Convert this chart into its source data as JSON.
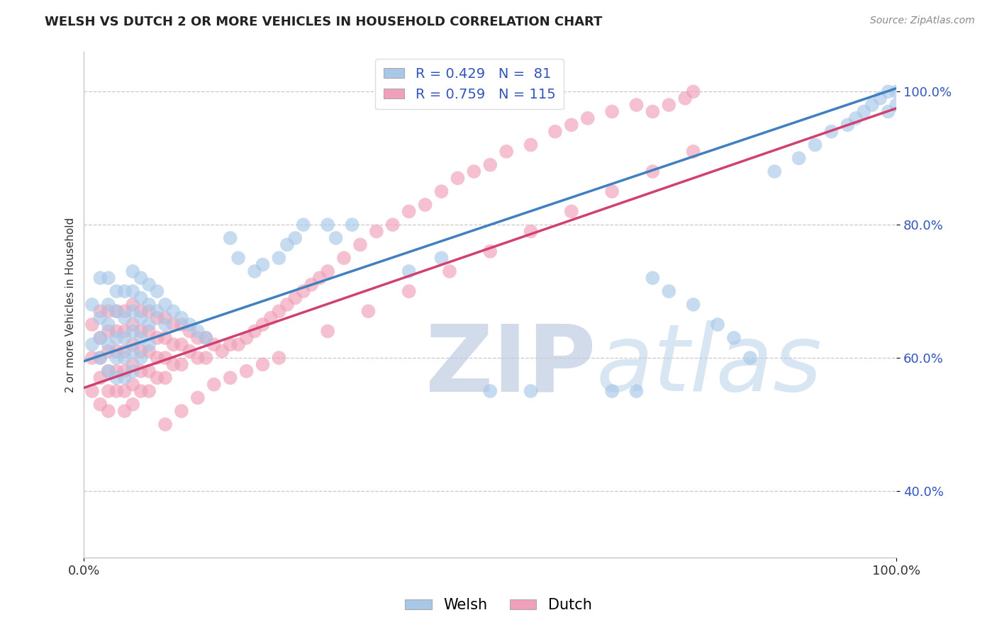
{
  "title": "WELSH VS DUTCH 2 OR MORE VEHICLES IN HOUSEHOLD CORRELATION CHART",
  "source": "Source: ZipAtlas.com",
  "ylabel": "2 or more Vehicles in Household",
  "welsh_R": 0.429,
  "welsh_N": 81,
  "dutch_R": 0.759,
  "dutch_N": 115,
  "welsh_color": "#a8c8e8",
  "dutch_color": "#f0a0b8",
  "welsh_line_color": "#4080c0",
  "dutch_line_color": "#d04070",
  "background_color": "#ffffff",
  "grid_color": "#c8c8c8",
  "xlim": [
    0.0,
    1.0
  ],
  "ylim": [
    0.3,
    1.06
  ],
  "ytick_positions": [
    0.4,
    0.6,
    0.8,
    1.0
  ],
  "ytick_labels": [
    "40.0%",
    "60.0%",
    "80.0%",
    "100.0%"
  ],
  "xtick_positions": [
    0.0,
    1.0
  ],
  "xtick_labels": [
    "0.0%",
    "100.0%"
  ],
  "title_fontsize": 13,
  "axis_fontsize": 11,
  "tick_fontsize": 13,
  "legend_fontsize": 14,
  "welsh_line": [
    0.0,
    0.595,
    1.0,
    1.005
  ],
  "dutch_line": [
    0.0,
    0.555,
    1.0,
    0.975
  ],
  "welsh_x": [
    0.01,
    0.01,
    0.02,
    0.02,
    0.02,
    0.02,
    0.03,
    0.03,
    0.03,
    0.03,
    0.03,
    0.04,
    0.04,
    0.04,
    0.04,
    0.04,
    0.05,
    0.05,
    0.05,
    0.05,
    0.05,
    0.06,
    0.06,
    0.06,
    0.06,
    0.06,
    0.06,
    0.07,
    0.07,
    0.07,
    0.07,
    0.07,
    0.08,
    0.08,
    0.08,
    0.08,
    0.09,
    0.09,
    0.1,
    0.1,
    0.11,
    0.12,
    0.13,
    0.14,
    0.15,
    0.18,
    0.19,
    0.21,
    0.22,
    0.24,
    0.25,
    0.26,
    0.27,
    0.3,
    0.31,
    0.33,
    0.4,
    0.44,
    0.5,
    0.55,
    0.65,
    0.68,
    0.7,
    0.72,
    0.75,
    0.78,
    0.8,
    0.82,
    0.85,
    0.88,
    0.9,
    0.92,
    0.94,
    0.95,
    0.96,
    0.97,
    0.98,
    0.99,
    0.99,
    1.0,
    1.0
  ],
  "welsh_y": [
    0.68,
    0.62,
    0.72,
    0.66,
    0.63,
    0.6,
    0.72,
    0.68,
    0.65,
    0.62,
    0.58,
    0.7,
    0.67,
    0.63,
    0.6,
    0.57,
    0.7,
    0.66,
    0.63,
    0.6,
    0.57,
    0.73,
    0.7,
    0.67,
    0.64,
    0.61,
    0.58,
    0.72,
    0.69,
    0.66,
    0.63,
    0.6,
    0.71,
    0.68,
    0.65,
    0.62,
    0.7,
    0.67,
    0.68,
    0.65,
    0.67,
    0.66,
    0.65,
    0.64,
    0.63,
    0.78,
    0.75,
    0.73,
    0.74,
    0.75,
    0.77,
    0.78,
    0.8,
    0.8,
    0.78,
    0.8,
    0.73,
    0.75,
    0.55,
    0.55,
    0.55,
    0.55,
    0.72,
    0.7,
    0.68,
    0.65,
    0.63,
    0.6,
    0.88,
    0.9,
    0.92,
    0.94,
    0.95,
    0.96,
    0.97,
    0.98,
    0.99,
    1.0,
    0.97,
    1.0,
    0.98
  ],
  "dutch_x": [
    0.01,
    0.01,
    0.01,
    0.02,
    0.02,
    0.02,
    0.02,
    0.02,
    0.03,
    0.03,
    0.03,
    0.03,
    0.03,
    0.03,
    0.04,
    0.04,
    0.04,
    0.04,
    0.04,
    0.05,
    0.05,
    0.05,
    0.05,
    0.05,
    0.05,
    0.06,
    0.06,
    0.06,
    0.06,
    0.06,
    0.06,
    0.07,
    0.07,
    0.07,
    0.07,
    0.07,
    0.08,
    0.08,
    0.08,
    0.08,
    0.08,
    0.09,
    0.09,
    0.09,
    0.09,
    0.1,
    0.1,
    0.1,
    0.1,
    0.11,
    0.11,
    0.11,
    0.12,
    0.12,
    0.12,
    0.13,
    0.13,
    0.14,
    0.14,
    0.15,
    0.15,
    0.16,
    0.17,
    0.18,
    0.19,
    0.2,
    0.21,
    0.22,
    0.23,
    0.24,
    0.25,
    0.26,
    0.27,
    0.28,
    0.29,
    0.3,
    0.32,
    0.34,
    0.36,
    0.38,
    0.4,
    0.42,
    0.44,
    0.46,
    0.48,
    0.5,
    0.52,
    0.55,
    0.58,
    0.6,
    0.62,
    0.65,
    0.68,
    0.7,
    0.72,
    0.74,
    0.75,
    0.1,
    0.12,
    0.14,
    0.16,
    0.18,
    0.2,
    0.22,
    0.24,
    0.3,
    0.35,
    0.4,
    0.45,
    0.5,
    0.55,
    0.6,
    0.65,
    0.7,
    0.75
  ],
  "dutch_y": [
    0.65,
    0.6,
    0.55,
    0.67,
    0.63,
    0.6,
    0.57,
    0.53,
    0.67,
    0.64,
    0.61,
    0.58,
    0.55,
    0.52,
    0.67,
    0.64,
    0.61,
    0.58,
    0.55,
    0.67,
    0.64,
    0.61,
    0.58,
    0.55,
    0.52,
    0.68,
    0.65,
    0.62,
    0.59,
    0.56,
    0.53,
    0.67,
    0.64,
    0.61,
    0.58,
    0.55,
    0.67,
    0.64,
    0.61,
    0.58,
    0.55,
    0.66,
    0.63,
    0.6,
    0.57,
    0.66,
    0.63,
    0.6,
    0.57,
    0.65,
    0.62,
    0.59,
    0.65,
    0.62,
    0.59,
    0.64,
    0.61,
    0.63,
    0.6,
    0.63,
    0.6,
    0.62,
    0.61,
    0.62,
    0.62,
    0.63,
    0.64,
    0.65,
    0.66,
    0.67,
    0.68,
    0.69,
    0.7,
    0.71,
    0.72,
    0.73,
    0.75,
    0.77,
    0.79,
    0.8,
    0.82,
    0.83,
    0.85,
    0.87,
    0.88,
    0.89,
    0.91,
    0.92,
    0.94,
    0.95,
    0.96,
    0.97,
    0.98,
    0.97,
    0.98,
    0.99,
    1.0,
    0.5,
    0.52,
    0.54,
    0.56,
    0.57,
    0.58,
    0.59,
    0.6,
    0.64,
    0.67,
    0.7,
    0.73,
    0.76,
    0.79,
    0.82,
    0.85,
    0.88,
    0.91
  ]
}
